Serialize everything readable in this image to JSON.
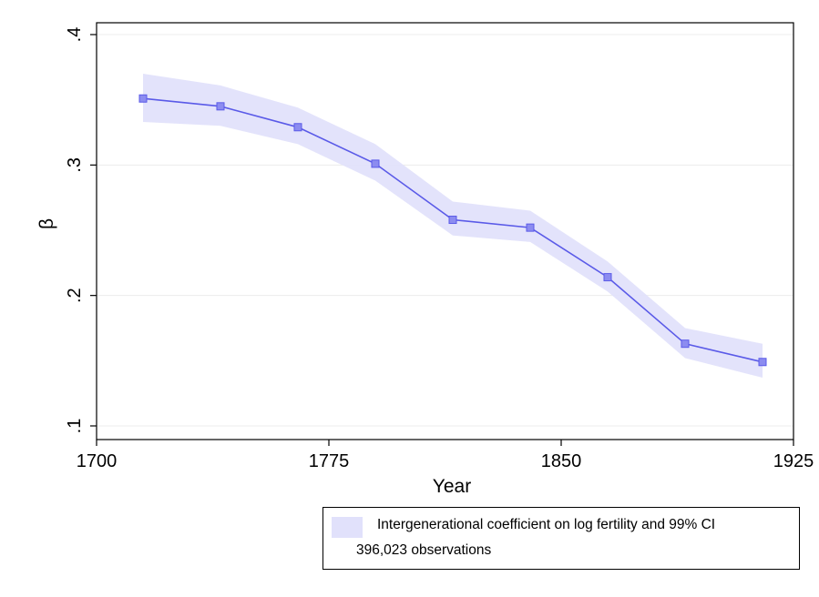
{
  "chart_data": {
    "type": "line",
    "xlabel": "Year",
    "ylabel": "β",
    "xlim": [
      1700,
      1925
    ],
    "ylim": [
      0.1,
      0.4
    ],
    "xticks": [
      1700,
      1775,
      1850,
      1925
    ],
    "xtick_labels": [
      "1700",
      "1775",
      "1850",
      "1925"
    ],
    "yticks": [
      0.1,
      0.2,
      0.3,
      0.4
    ],
    "ytick_labels": [
      ".1",
      ".2",
      ".3",
      ".4"
    ],
    "grid": true,
    "legend_position": "bottom-right",
    "series": [
      {
        "name": "Intergenerational coefficient on log fertility and 99% CI",
        "color": "#5a5ae8",
        "band_color": "#e1e1fb",
        "x": [
          1715,
          1740,
          1765,
          1790,
          1815,
          1840,
          1865,
          1890,
          1915
        ],
        "y": [
          0.351,
          0.345,
          0.329,
          0.301,
          0.258,
          0.252,
          0.214,
          0.163,
          0.149
        ],
        "ci_lower": [
          0.333,
          0.33,
          0.316,
          0.288,
          0.246,
          0.241,
          0.203,
          0.152,
          0.137
        ],
        "ci_upper": [
          0.37,
          0.361,
          0.344,
          0.316,
          0.272,
          0.265,
          0.226,
          0.175,
          0.163
        ]
      }
    ],
    "annotation": "396,023 observations"
  }
}
